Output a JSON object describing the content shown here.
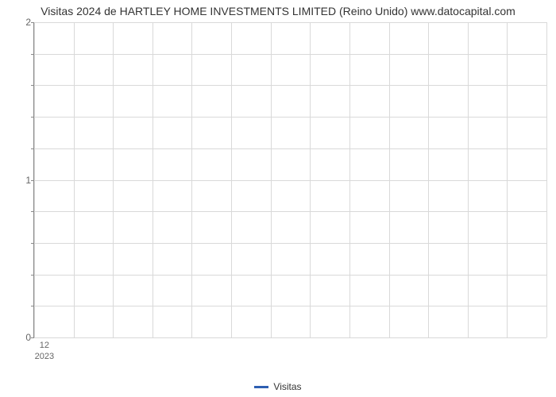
{
  "chart": {
    "type": "line",
    "title": "Visitas 2024 de HARTLEY HOME INVESTMENTS LIMITED (Reino Unido) www.datocapital.com",
    "title_fontsize": 14,
    "title_color": "#333333",
    "background_color": "#ffffff",
    "grid_color": "#d9d9d9",
    "axis_color": "#888888",
    "tick_label_color": "#666666",
    "tick_label_fontsize": 12,
    "y": {
      "lim": [
        0,
        2
      ],
      "major_ticks": [
        0,
        1,
        2
      ],
      "minor_tick_count_between": 4
    },
    "x": {
      "tick_label_major": "12",
      "tick_label_secondary": "2023",
      "tick_position_fraction": 0.02,
      "grid_line_count": 13
    },
    "series": [
      {
        "name": "Visitas",
        "color": "#2e5fb2",
        "line_width": 3,
        "values": []
      }
    ],
    "legend": {
      "position": "bottom-center",
      "items": [
        {
          "label": "Visitas",
          "color": "#2e5fb2"
        }
      ]
    }
  }
}
